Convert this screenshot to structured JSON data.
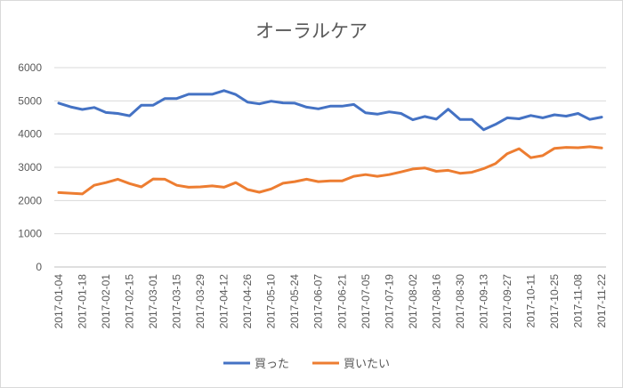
{
  "chart_data": {
    "type": "line",
    "title": "オーラルケア",
    "xlabel": "",
    "ylabel": "",
    "ylim": [
      0,
      6000
    ],
    "yticks": [
      0,
      1000,
      2000,
      3000,
      4000,
      5000,
      6000
    ],
    "grid": true,
    "legend": "bottom",
    "x_tick_labels": [
      "2017-01-04",
      "2017-01-18",
      "2017-02-01",
      "2017-02-15",
      "2017-03-01",
      "2017-03-15",
      "2017-03-29",
      "2017-04-12",
      "2017-04-26",
      "2017-05-10",
      "2017-05-24",
      "2017-06-07",
      "2017-06-21",
      "2017-07-05",
      "2017-07-19",
      "2017-08-02",
      "2017-08-16",
      "2017-08-30",
      "2017-09-13",
      "2017-09-27",
      "2017-10-11",
      "2017-10-25",
      "2017-11-08",
      "2017-11-22"
    ],
    "series": [
      {
        "name": "買った",
        "color": "#4472C4",
        "values": [
          4930,
          4820,
          4740,
          4800,
          4650,
          4620,
          4550,
          4870,
          4870,
          5070,
          5070,
          5200,
          5200,
          5200,
          5310,
          5190,
          4960,
          4910,
          4990,
          4940,
          4930,
          4810,
          4760,
          4840,
          4840,
          4890,
          4640,
          4600,
          4670,
          4620,
          4430,
          4530,
          4450,
          4750,
          4440,
          4440,
          4130,
          4290,
          4490,
          4460,
          4560,
          4490,
          4580,
          4540,
          4620,
          4440,
          4510
        ]
      },
      {
        "name": "買いたい",
        "color": "#ED7D31",
        "values": [
          2240,
          2220,
          2200,
          2460,
          2540,
          2640,
          2510,
          2410,
          2650,
          2640,
          2460,
          2400,
          2410,
          2440,
          2400,
          2540,
          2330,
          2250,
          2350,
          2520,
          2570,
          2640,
          2570,
          2590,
          2590,
          2730,
          2780,
          2730,
          2780,
          2860,
          2950,
          2980,
          2880,
          2910,
          2820,
          2850,
          2960,
          3110,
          3410,
          3560,
          3290,
          3350,
          3570,
          3600,
          3590,
          3620,
          3580
        ]
      }
    ]
  }
}
